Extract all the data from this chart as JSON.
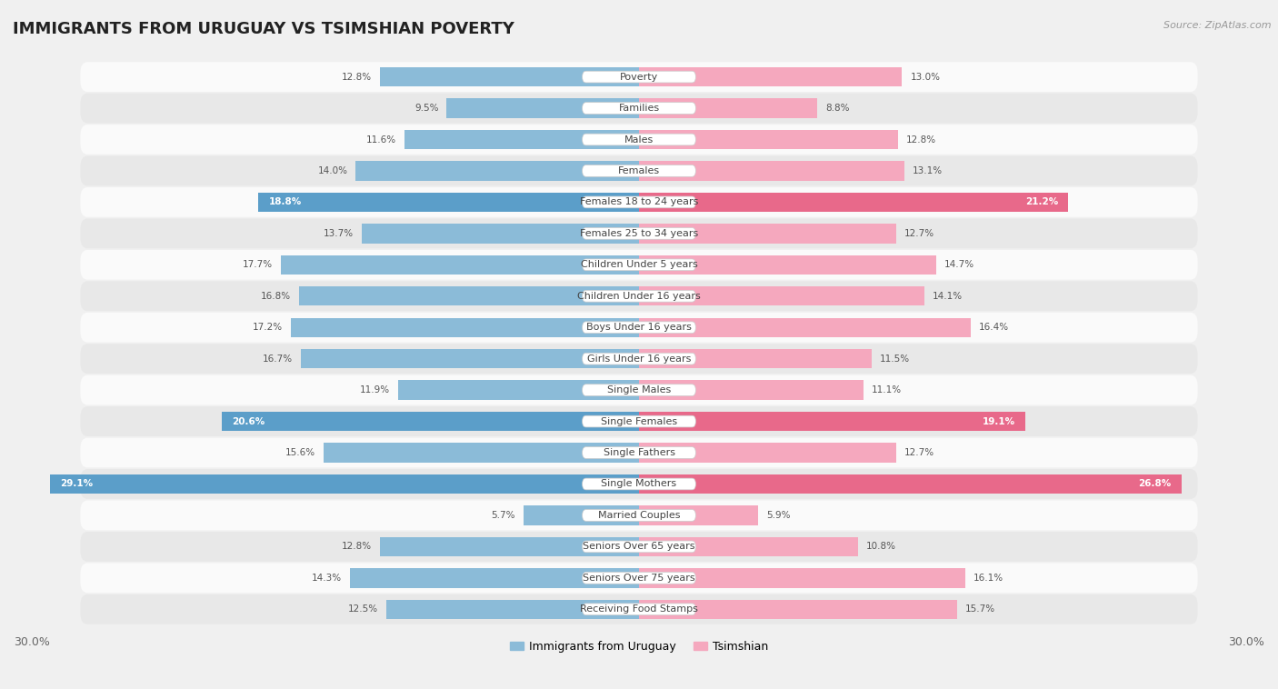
{
  "title": "IMMIGRANTS FROM URUGUAY VS TSIMSHIAN POVERTY",
  "source": "Source: ZipAtlas.com",
  "categories": [
    "Poverty",
    "Families",
    "Males",
    "Females",
    "Females 18 to 24 years",
    "Females 25 to 34 years",
    "Children Under 5 years",
    "Children Under 16 years",
    "Boys Under 16 years",
    "Girls Under 16 years",
    "Single Males",
    "Single Females",
    "Single Fathers",
    "Single Mothers",
    "Married Couples",
    "Seniors Over 65 years",
    "Seniors Over 75 years",
    "Receiving Food Stamps"
  ],
  "uruguay_values": [
    12.8,
    9.5,
    11.6,
    14.0,
    18.8,
    13.7,
    17.7,
    16.8,
    17.2,
    16.7,
    11.9,
    20.6,
    15.6,
    29.1,
    5.7,
    12.8,
    14.3,
    12.5
  ],
  "tsimshian_values": [
    13.0,
    8.8,
    12.8,
    13.1,
    21.2,
    12.7,
    14.7,
    14.1,
    16.4,
    11.5,
    11.1,
    19.1,
    12.7,
    26.8,
    5.9,
    10.8,
    16.1,
    15.7
  ],
  "uruguay_color": "#8bbbd8",
  "tsimshian_color": "#f5a8be",
  "highlight_uruguay_color": "#5b9ec9",
  "highlight_tsimshian_color": "#e8698a",
  "highlight_rows": [
    4,
    11,
    13
  ],
  "xlim": 30.0,
  "background_color": "#f0f0f0",
  "row_bg_light": "#fafafa",
  "row_bg_dark": "#e8e8e8",
  "title_fontsize": 13,
  "label_fontsize": 8.0,
  "value_fontsize": 7.5,
  "legend_fontsize": 9
}
